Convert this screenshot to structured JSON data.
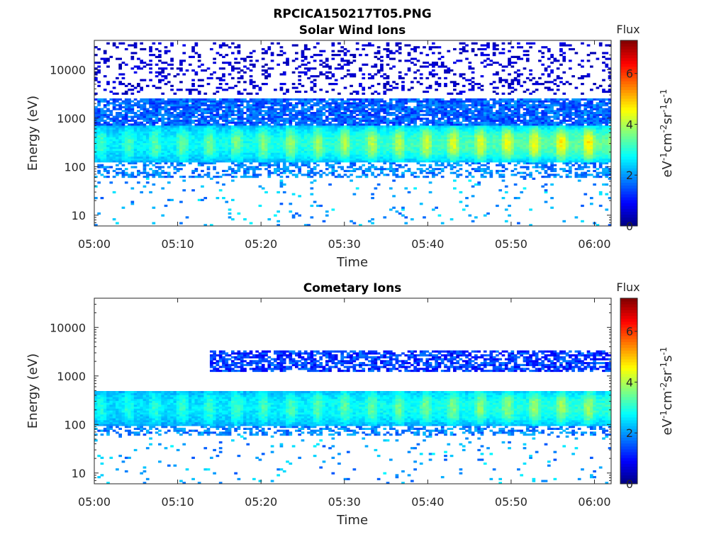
{
  "figure": {
    "title": "RPCICA150217T05.PNG"
  },
  "chart_data": [
    {
      "type": "heatmap",
      "title": "Solar Wind Ions",
      "xlabel": "Time",
      "ylabel": "Energy (eV)",
      "yscale": "log",
      "ylim": [
        6,
        40000
      ],
      "xlim": [
        "05:00",
        "06:02"
      ],
      "x_ticks": [
        "05:00",
        "05:10",
        "05:20",
        "05:30",
        "05:40",
        "05:50",
        "06:00"
      ],
      "y_ticks": [
        "10",
        "100",
        "1000",
        "10000"
      ],
      "grid": false,
      "colorbar": {
        "title": "Flux",
        "label": "eV-1cm-2sr-1s-1",
        "range": [
          0,
          7.3
        ],
        "ticks": [
          "0",
          "2",
          "4",
          "6"
        ],
        "colormap": "jet"
      },
      "profile": {
        "core_energy_range_eV": [
          120,
          700
        ],
        "peak_energy_eV": 300,
        "peak_flux_early": 3.2,
        "peak_flux_late": 4.8,
        "halo_energy_range_eV": [
          700,
          2600
        ],
        "halo_flux": 1.6,
        "sparse_high_energy_range_eV": [
          3000,
          35000
        ],
        "sparse_low_energy_range_eV": [
          6,
          60
        ]
      }
    },
    {
      "type": "heatmap",
      "title": "Cometary Ions",
      "xlabel": "Time",
      "ylabel": "Energy (eV)",
      "yscale": "log",
      "ylim": [
        6,
        40000
      ],
      "xlim": [
        "05:00",
        "06:02"
      ],
      "x_ticks": [
        "05:00",
        "05:10",
        "05:20",
        "05:30",
        "05:40",
        "05:50",
        "06:00"
      ],
      "y_ticks": [
        "10",
        "100",
        "1000",
        "10000"
      ],
      "grid": false,
      "colorbar": {
        "title": "Flux",
        "label": "eV-1cm-2sr-1s-1",
        "range": [
          0,
          7.3
        ],
        "ticks": [
          "0",
          "2",
          "4",
          "6"
        ],
        "colormap": "jet"
      },
      "profile": {
        "core_energy_range_eV": [
          90,
          500
        ],
        "peak_energy_eV": 230,
        "peak_flux_early": 2.9,
        "peak_flux_late": 4.0,
        "upper_band_energy_range_eV": [
          1200,
          3500
        ],
        "upper_band_start": "05:14",
        "upper_band_flux": 1.2,
        "sparse_low_energy_range_eV": [
          6,
          60
        ]
      }
    }
  ]
}
